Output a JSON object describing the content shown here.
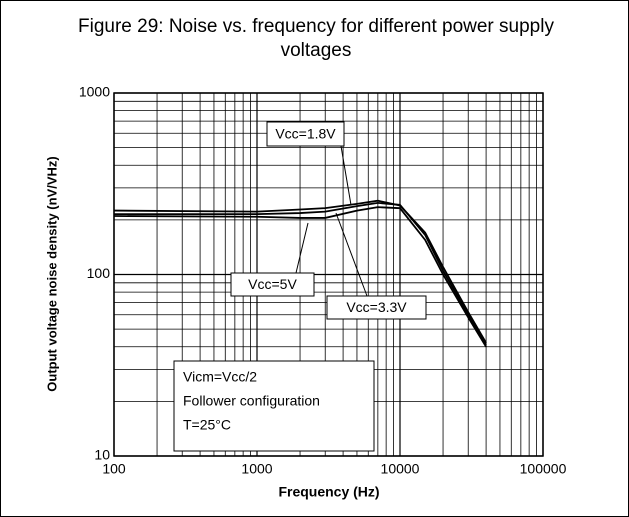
{
  "chart_data": {
    "type": "line",
    "title": "Figure 29: Noise vs. frequency for different power supply voltages",
    "x_label": "Frequency (Hz)",
    "y_label": "Output voltage noise density (nV/VHz)",
    "x": [
      100,
      1000,
      2000,
      3000,
      5000,
      7000,
      10000,
      15000,
      20000,
      30000,
      40000
    ],
    "series": [
      {
        "name": "Vcc=1.8V",
        "color": "#000000",
        "values": [
          225,
          222,
          228,
          232,
          245,
          255,
          240,
          170,
          110,
          62,
          42
        ]
      },
      {
        "name": "Vcc=5V",
        "color": "#000000",
        "values": [
          210,
          208,
          205,
          205,
          225,
          235,
          232,
          155,
          100,
          58,
          40
        ]
      },
      {
        "name": "Vcc=3.3V",
        "color": "#000000",
        "values": [
          215,
          215,
          218,
          222,
          238,
          248,
          242,
          165,
          105,
          60,
          41
        ]
      }
    ],
    "note": [
      "Vicm=Vcc/2",
      "Follower configuration",
      "T=25°C"
    ],
    "xlog": true,
    "ylog": true,
    "xlim": [
      100,
      100000
    ],
    "ylim": [
      10,
      1000
    ],
    "xticks": [
      100,
      1000,
      10000,
      100000
    ],
    "yticks": [
      10,
      100,
      1000
    ],
    "grid": true,
    "minor_grid": true
  }
}
